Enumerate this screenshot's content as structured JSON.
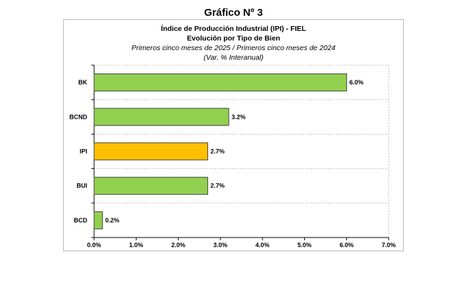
{
  "page": {
    "heading": "Gráfico Nº 3"
  },
  "chart_data": {
    "type": "bar",
    "orientation": "horizontal",
    "title": "Índice de Producción Industrial (IPI) - FIEL",
    "subtitle": "Evolución por Tipo de Bien",
    "subtitle2": "Primeros cinco meses de 2025 / Primeros cinco meses de 2024",
    "subtitle3": "(Var. % Interanual)",
    "categories": [
      "BK",
      "BCND",
      "IPI",
      "BUI",
      "BCD"
    ],
    "values": [
      6.0,
      3.2,
      2.7,
      2.7,
      0.2
    ],
    "value_labels": [
      "6.0%",
      "3.2%",
      "2.7%",
      "2.7%",
      "0.2%"
    ],
    "bar_colors": [
      "#92d050",
      "#92d050",
      "#ffc000",
      "#92d050",
      "#92d050"
    ],
    "xlim": [
      0,
      7
    ],
    "xticks": [
      "0.0%",
      "1.0%",
      "2.0%",
      "3.0%",
      "4.0%",
      "5.0%",
      "6.0%",
      "7.0%"
    ],
    "xlabel": "",
    "ylabel": "",
    "grid": "horizontal dashed separators",
    "legend": "none"
  }
}
